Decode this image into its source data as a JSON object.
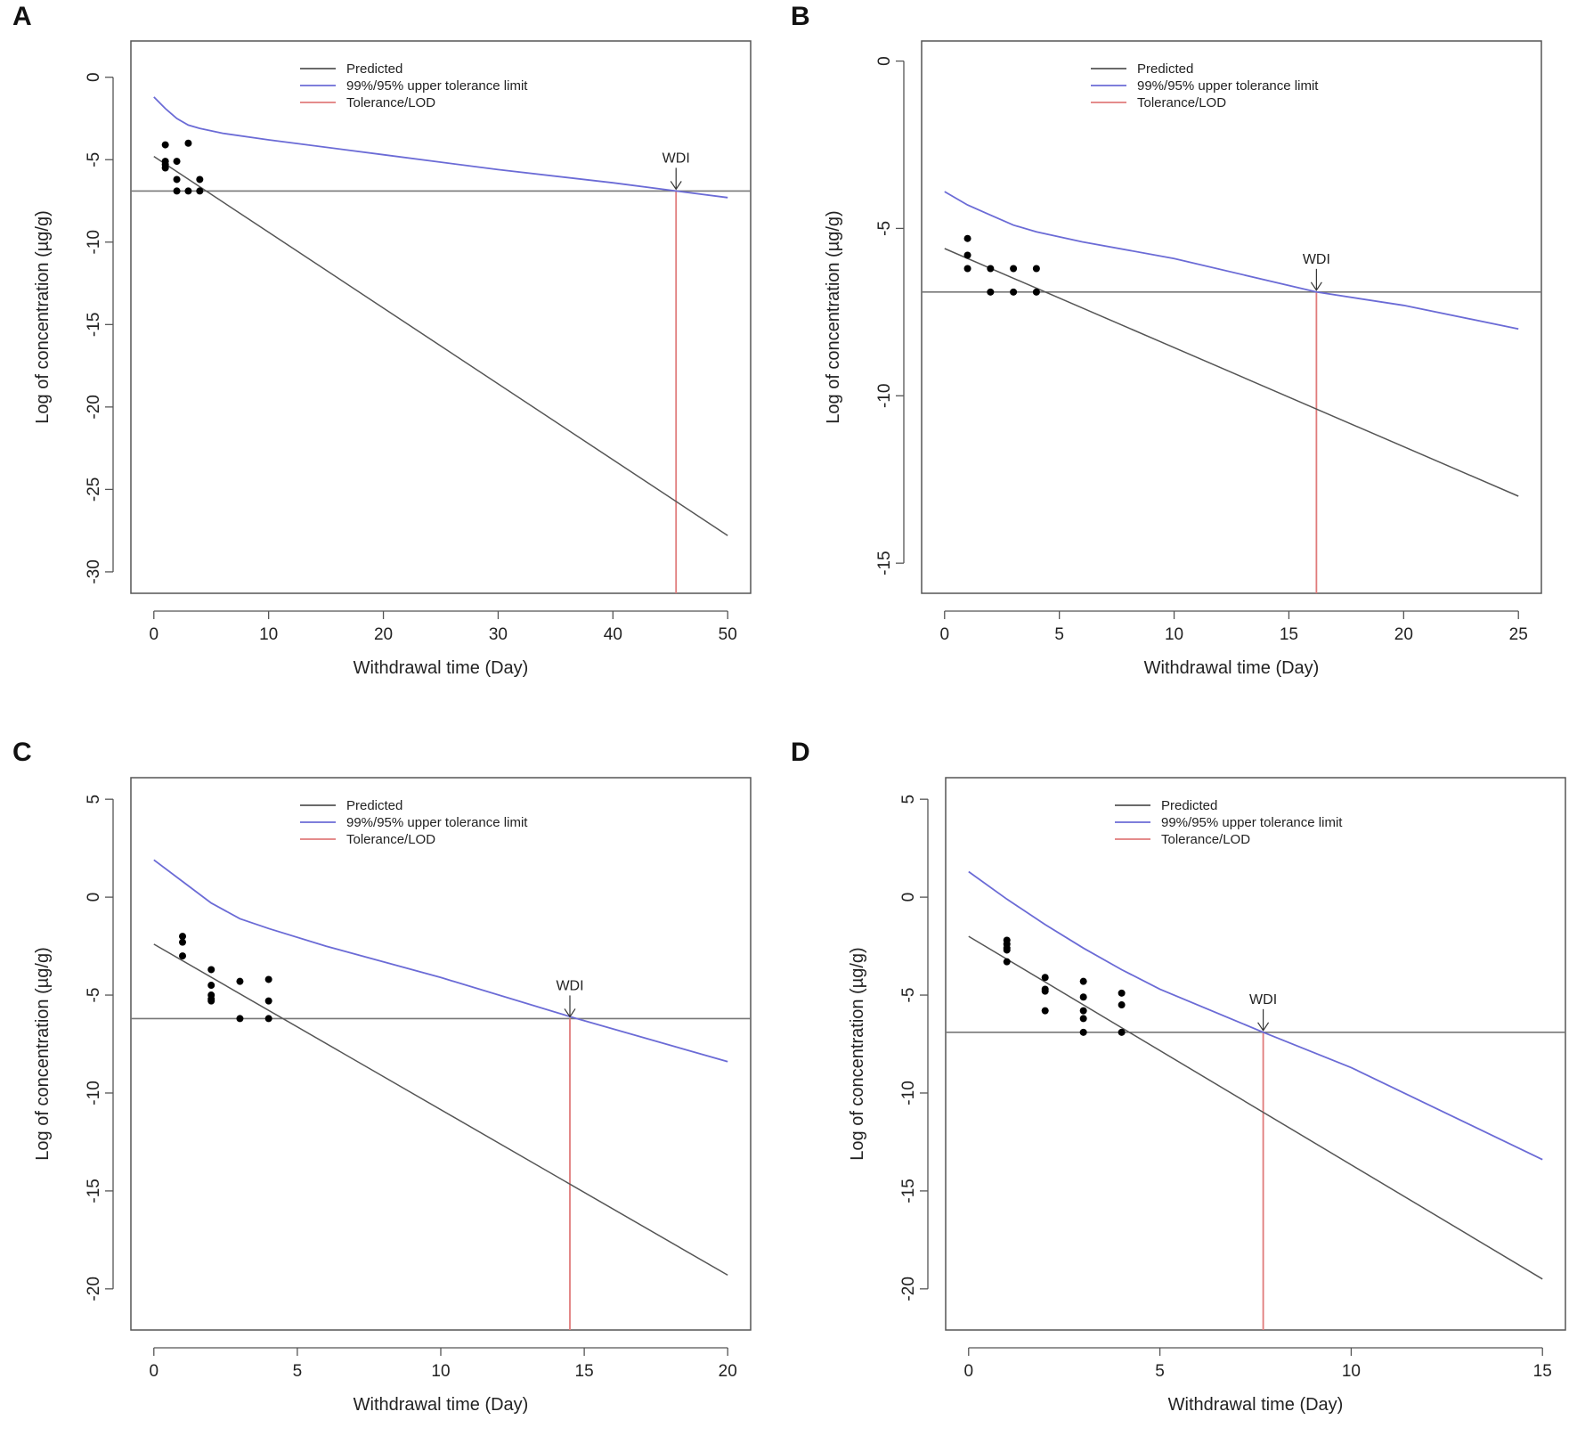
{
  "panel_labels": [
    "A",
    "B",
    "C",
    "D"
  ],
  "colors": {
    "predicted": "#555555",
    "upper": "#6b6bd6",
    "tolerance": "#e07b7b",
    "lod": "#777777",
    "points": "#000000",
    "frame": "#555555"
  },
  "chart_data": [
    {
      "panel": "A",
      "type": "line",
      "xlabel": "Withdrawal time (Day)",
      "ylabel": "Log of concentration (µg/g)",
      "xlim": [
        -2,
        52
      ],
      "ylim": [
        -31.3,
        2.2
      ],
      "xticks": [
        0,
        10,
        20,
        30,
        40,
        50
      ],
      "yticks": [
        0,
        -5,
        -10,
        -15,
        -20,
        -25,
        -30
      ],
      "legend": [
        "Predicted",
        "99%/95% upper tolerance limit",
        "Tolerance/LOD"
      ],
      "legend_position": "top-center",
      "series": [
        {
          "name": "Predicted",
          "x": [
            0,
            50
          ],
          "y": [
            -4.8,
            -27.8
          ]
        },
        {
          "name": "99%/95% upper tolerance limit",
          "x": [
            0,
            1,
            2,
            3,
            4,
            6,
            10,
            20,
            30,
            40,
            45.5,
            50
          ],
          "y": [
            -1.2,
            -1.9,
            -2.5,
            -2.9,
            -3.1,
            -3.4,
            -3.8,
            -4.7,
            -5.6,
            -6.4,
            -6.9,
            -7.3
          ]
        }
      ],
      "tolerance_level": -6.9,
      "wdi": {
        "label": "WDI",
        "x": 45.5,
        "y": -6.9
      },
      "points": {
        "x": [
          1,
          1,
          1,
          1,
          2,
          2,
          2,
          3,
          3,
          4,
          4
        ],
        "y": [
          -4.1,
          -5.1,
          -5.3,
          -5.5,
          -5.1,
          -6.2,
          -6.9,
          -4.0,
          -6.9,
          -6.2,
          -6.9
        ]
      }
    },
    {
      "panel": "B",
      "type": "line",
      "xlabel": "Withdrawal time (Day)",
      "ylabel": "Log of concentration (µg/g)",
      "xlim": [
        -1,
        26
      ],
      "ylim": [
        -15.9,
        0.6
      ],
      "xticks": [
        0,
        5,
        10,
        15,
        20,
        25
      ],
      "yticks": [
        0,
        -5,
        -10,
        -15
      ],
      "legend": [
        "Predicted",
        "99%/95% upper tolerance limit",
        "Tolerance/LOD"
      ],
      "legend_position": "top-center",
      "series": [
        {
          "name": "Predicted",
          "x": [
            0,
            25
          ],
          "y": [
            -5.6,
            -13.0
          ]
        },
        {
          "name": "99%/95% upper tolerance limit",
          "x": [
            0,
            1,
            2,
            3,
            4,
            6,
            10,
            16.2,
            20,
            25
          ],
          "y": [
            -3.9,
            -4.3,
            -4.6,
            -4.9,
            -5.1,
            -5.4,
            -5.9,
            -6.9,
            -7.3,
            -8.0
          ]
        }
      ],
      "tolerance_level": -6.9,
      "wdi": {
        "label": "WDI",
        "x": 16.2,
        "y": -6.9
      },
      "points": {
        "x": [
          1,
          1,
          1,
          2,
          2,
          3,
          3,
          4,
          4
        ],
        "y": [
          -5.3,
          -5.8,
          -6.2,
          -6.2,
          -6.9,
          -6.2,
          -6.9,
          -6.2,
          -6.9
        ]
      }
    },
    {
      "panel": "C",
      "type": "line",
      "xlabel": "Withdrawal time (Day)",
      "ylabel": "Log of concentration (µg/g)",
      "xlim": [
        -0.8,
        20.8
      ],
      "ylim": [
        -22.1,
        6.1
      ],
      "xticks": [
        0,
        5,
        10,
        15,
        20
      ],
      "yticks": [
        5,
        0,
        -5,
        -10,
        -15,
        -20
      ],
      "legend": [
        "Predicted",
        "99%/95% upper tolerance limit",
        "Tolerance/LOD"
      ],
      "legend_position": "top-center",
      "series": [
        {
          "name": "Predicted",
          "x": [
            0,
            20
          ],
          "y": [
            -2.4,
            -19.3
          ]
        },
        {
          "name": "99%/95% upper tolerance limit",
          "x": [
            0,
            1,
            2,
            3,
            4,
            6,
            10,
            14.5,
            20
          ],
          "y": [
            1.9,
            0.8,
            -0.3,
            -1.1,
            -1.6,
            -2.5,
            -4.1,
            -6.1,
            -8.4
          ]
        }
      ],
      "tolerance_level": -6.2,
      "wdi": {
        "label": "WDI",
        "x": 14.5,
        "y": -6.2
      },
      "points": {
        "x": [
          1,
          1,
          1,
          2,
          2,
          2,
          2,
          2,
          3,
          3,
          4,
          4,
          4
        ],
        "y": [
          -2.0,
          -2.3,
          -3.0,
          -3.7,
          -4.5,
          -5.0,
          -5.2,
          -5.3,
          -4.3,
          -6.2,
          -4.2,
          -5.3,
          -6.2
        ]
      }
    },
    {
      "panel": "D",
      "type": "line",
      "xlabel": "Withdrawal time (Day)",
      "ylabel": "Log of concentration (µg/g)",
      "xlim": [
        -0.6,
        15.6
      ],
      "ylim": [
        -22.1,
        6.1
      ],
      "xticks": [
        0,
        5,
        10,
        15
      ],
      "yticks": [
        5,
        0,
        -5,
        -10,
        -15,
        -20
      ],
      "legend": [
        "Predicted",
        "99%/95% upper tolerance limit",
        "Tolerance/LOD"
      ],
      "legend_position": "top-center",
      "series": [
        {
          "name": "Predicted",
          "x": [
            0,
            15
          ],
          "y": [
            -2.0,
            -19.5
          ]
        },
        {
          "name": "99%/95% upper tolerance limit",
          "x": [
            0,
            1,
            2,
            3,
            4,
            5,
            7.7,
            10,
            15
          ],
          "y": [
            1.3,
            -0.1,
            -1.4,
            -2.6,
            -3.7,
            -4.7,
            -6.9,
            -8.7,
            -13.4
          ]
        }
      ],
      "tolerance_level": -6.9,
      "wdi": {
        "label": "WDI",
        "x": 7.7,
        "y": -6.9
      },
      "points": {
        "x": [
          1,
          1,
          1,
          1,
          1,
          2,
          2,
          2,
          2,
          3,
          3,
          3,
          3,
          3,
          4,
          4,
          4
        ],
        "y": [
          -2.2,
          -2.4,
          -2.6,
          -2.7,
          -3.3,
          -4.1,
          -4.7,
          -4.8,
          -5.8,
          -4.3,
          -5.1,
          -5.8,
          -6.2,
          -6.9,
          -4.9,
          -5.5,
          -6.9
        ]
      }
    }
  ]
}
